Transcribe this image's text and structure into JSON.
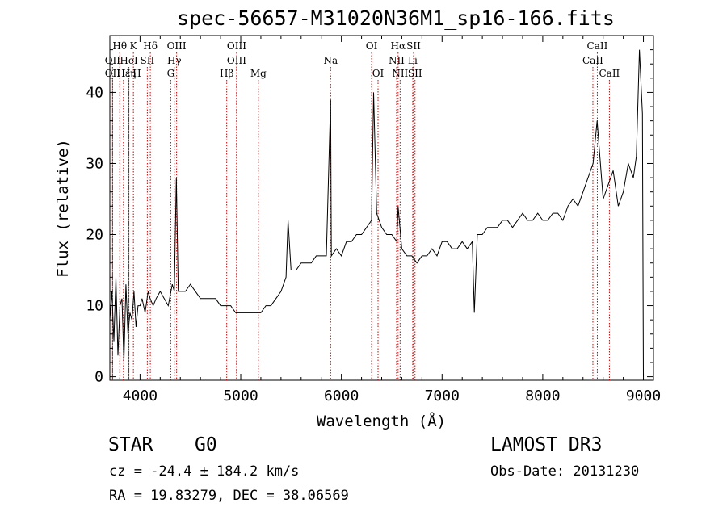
{
  "chart_data": {
    "type": "line",
    "title": "spec-56657-M31020N36M1_sp16-166.fits",
    "xlabel": "Wavelength (Å)",
    "ylabel": "Flux (relative)",
    "xlim": [
      3700,
      9100
    ],
    "ylim": [
      -0.5,
      48
    ],
    "xticks": [
      4000,
      5000,
      6000,
      7000,
      8000,
      9000
    ],
    "yticks": [
      0,
      10,
      20,
      30,
      40
    ],
    "series": [
      {
        "name": "spectrum",
        "x": [
          3700,
          3720,
          3740,
          3760,
          3780,
          3800,
          3820,
          3840,
          3860,
          3880,
          3900,
          3920,
          3940,
          3960,
          3980,
          4000,
          4020,
          4050,
          4080,
          4100,
          4130,
          4160,
          4200,
          4240,
          4280,
          4320,
          4340,
          4360,
          4380,
          4400,
          4450,
          4500,
          4550,
          4600,
          4650,
          4700,
          4750,
          4800,
          4850,
          4900,
          4950,
          5000,
          5050,
          5100,
          5150,
          5200,
          5250,
          5300,
          5350,
          5400,
          5450,
          5470,
          5500,
          5550,
          5600,
          5650,
          5700,
          5750,
          5800,
          5850,
          5893,
          5900,
          5950,
          6000,
          6050,
          6100,
          6150,
          6200,
          6250,
          6300,
          6320,
          6350,
          6400,
          6450,
          6500,
          6550,
          6563,
          6600,
          6650,
          6700,
          6750,
          6800,
          6850,
          6900,
          6950,
          7000,
          7050,
          7100,
          7150,
          7200,
          7250,
          7300,
          7320,
          7350,
          7400,
          7450,
          7500,
          7550,
          7600,
          7650,
          7700,
          7750,
          7800,
          7850,
          7900,
          7950,
          8000,
          8050,
          8100,
          8150,
          8200,
          8250,
          8300,
          8350,
          8400,
          8450,
          8500,
          8540,
          8600,
          8650,
          8700,
          8750,
          8800,
          8850,
          8900,
          8930,
          8960,
          8990,
          9000
        ],
        "values": [
          8,
          12,
          5,
          14,
          3,
          10,
          11,
          2,
          13,
          6,
          9,
          8,
          12,
          7,
          10,
          10,
          11,
          9,
          12,
          11,
          10,
          11,
          12,
          11,
          10,
          13,
          12,
          28,
          12,
          12,
          12,
          13,
          12,
          11,
          11,
          11,
          11,
          10,
          10,
          10,
          9,
          9,
          9,
          9,
          9,
          9,
          10,
          10,
          11,
          12,
          14,
          22,
          15,
          15,
          16,
          16,
          16,
          17,
          17,
          17,
          39,
          17,
          18,
          17,
          19,
          19,
          20,
          20,
          21,
          22,
          40,
          23,
          21,
          20,
          20,
          19,
          24,
          18,
          17,
          17,
          16,
          17,
          17,
          18,
          17,
          19,
          19,
          18,
          18,
          19,
          18,
          19,
          9,
          20,
          20,
          21,
          21,
          21,
          22,
          22,
          21,
          22,
          23,
          22,
          22,
          23,
          22,
          22,
          23,
          23,
          22,
          24,
          25,
          24,
          26,
          28,
          30,
          36,
          25,
          27,
          29,
          24,
          26,
          30,
          28,
          31,
          46,
          37,
          0
        ]
      }
    ],
    "lines": [
      {
        "name": "Hθ",
        "x": 3798,
        "row": 0
      },
      {
        "name": "OII",
        "x": 3727,
        "row": 1
      },
      {
        "name": "OII",
        "x": 3727,
        "row": 2
      },
      {
        "name": "Hε",
        "x": 3835,
        "row": 2
      },
      {
        "name": "K",
        "x": 3934,
        "row": 0
      },
      {
        "name": "HeI",
        "x": 3889,
        "row": 1
      },
      {
        "name": "Hη",
        "x": 3889,
        "row": 2
      },
      {
        "name": "H",
        "x": 3969,
        "row": 2
      },
      {
        "name": "Hδ",
        "x": 4102,
        "row": 0
      },
      {
        "name": "SII",
        "x": 4072,
        "row": 1
      },
      {
        "name": "OIII",
        "x": 4363,
        "row": 0
      },
      {
        "name": "Hγ",
        "x": 4340,
        "row": 1
      },
      {
        "name": "G",
        "x": 4305,
        "row": 2
      },
      {
        "name": "OIII",
        "x": 4959,
        "row": 0
      },
      {
        "name": "OIII",
        "x": 4959,
        "row": 1
      },
      {
        "name": "Hβ",
        "x": 4861,
        "row": 2
      },
      {
        "name": "Mg",
        "x": 5175,
        "row": 2
      },
      {
        "name": "Na",
        "x": 5893,
        "row": 1
      },
      {
        "name": "OI",
        "x": 6300,
        "row": 0
      },
      {
        "name": "OI",
        "x": 6364,
        "row": 2
      },
      {
        "name": "Hα",
        "x": 6563,
        "row": 0
      },
      {
        "name": "SII",
        "x": 6717,
        "row": 0
      },
      {
        "name": "NII",
        "x": 6548,
        "row": 1
      },
      {
        "name": "Li",
        "x": 6708,
        "row": 1
      },
      {
        "name": "NII",
        "x": 6583,
        "row": 2
      },
      {
        "name": "SII",
        "x": 6731,
        "row": 2
      },
      {
        "name": "CaII",
        "x": 8542,
        "row": 0
      },
      {
        "name": "CaII",
        "x": 8498,
        "row": 1
      },
      {
        "name": "CaII",
        "x": 8662,
        "row": 2
      }
    ]
  },
  "info": {
    "obj_type": "STAR",
    "subclass": "G0",
    "survey": "LAMOST DR3",
    "cz": "cz = -24.4 ± 184.2 km/s",
    "obs_date": "Obs-Date: 20131230",
    "radec": "RA =  19.83279, DEC =  38.06569"
  },
  "colors": {
    "spectrum": "#000000",
    "marker_line": "#cc0000",
    "axis": "#000000"
  }
}
